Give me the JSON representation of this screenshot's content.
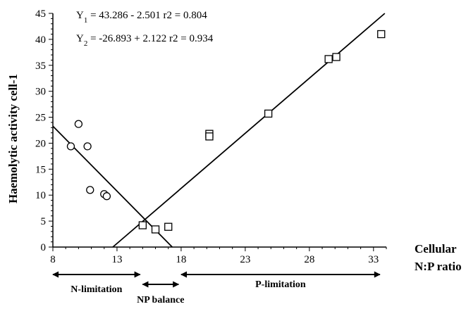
{
  "chart_data": {
    "type": "scatter",
    "title": "",
    "ylabel": "Haemolytic activity cell-1",
    "xlabel": "Cellular N:P ratio",
    "xlim": [
      8,
      34
    ],
    "ylim": [
      0,
      45
    ],
    "xticks": [
      8,
      13,
      18,
      23,
      28,
      33
    ],
    "yticks": [
      0,
      5,
      10,
      15,
      20,
      25,
      30,
      35,
      40,
      45
    ],
    "grid": false,
    "equations": [
      {
        "label": "Y1 = 43.286 - 2.501 r2 = 0.804",
        "slope": -2.501,
        "intercept": 43.286
      },
      {
        "label": "Y2 = -26.893 + 2.122 r2 = 0.934",
        "slope": 2.122,
        "intercept": -26.893
      }
    ],
    "series": [
      {
        "marker": "circle",
        "points": [
          {
            "x": 9.4,
            "y": 19.4
          },
          {
            "x": 10.0,
            "y": 23.7
          },
          {
            "x": 10.7,
            "y": 19.4
          },
          {
            "x": 10.9,
            "y": 11.0
          },
          {
            "x": 12.0,
            "y": 10.2
          },
          {
            "x": 12.2,
            "y": 9.8
          }
        ]
      },
      {
        "marker": "square",
        "points": [
          {
            "x": 15.0,
            "y": 4.2
          },
          {
            "x": 16.0,
            "y": 3.4
          },
          {
            "x": 17.0,
            "y": 3.9
          },
          {
            "x": 20.2,
            "y": 21.8
          },
          {
            "x": 20.2,
            "y": 21.3
          },
          {
            "x": 24.8,
            "y": 25.7
          },
          {
            "x": 29.5,
            "y": 36.2
          },
          {
            "x": 30.1,
            "y": 36.6
          },
          {
            "x": 33.6,
            "y": 41.0
          }
        ]
      }
    ],
    "regions": [
      {
        "label": "N-limitation",
        "x_from": 8,
        "x_to": 14.8
      },
      {
        "label": "NP balance",
        "x_from": 15.0,
        "x_to": 17.8
      },
      {
        "label": "P-limitation",
        "x_from": 18,
        "x_to": 33.5
      }
    ]
  }
}
